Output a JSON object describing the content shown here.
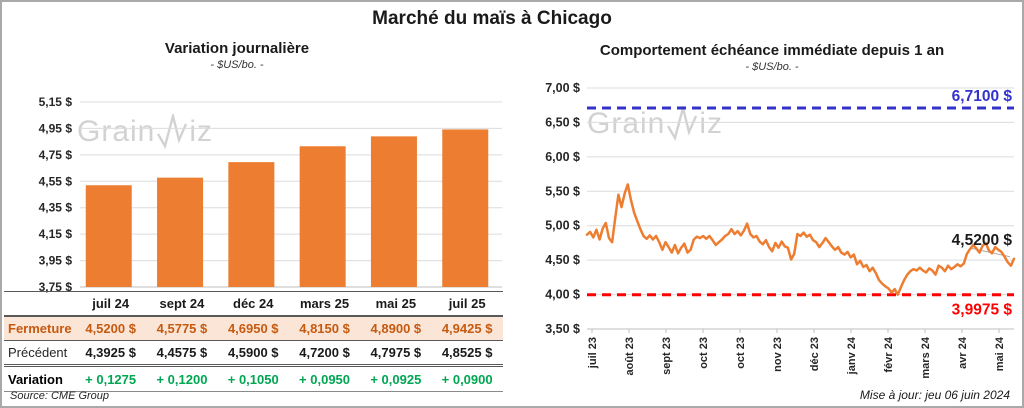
{
  "main": {
    "title": "Marché du maïs à Chicago"
  },
  "watermark": {
    "part1": "Grain",
    "part2": "iz"
  },
  "colors": {
    "orange": "#ED7D31",
    "peach_bg": "#FBE5D6",
    "dark_orange_text": "#C55A11",
    "green_text": "#00A651",
    "blue_ref": "#3333CC",
    "red_ref": "#FF0000",
    "gridline": "#DCDCDC",
    "axis": "#BFBFBF",
    "table_border": "#595959",
    "watermark": "#D2D2D2"
  },
  "chart_data": [
    {
      "type": "bar",
      "title": "Variation journalière",
      "subtitle": "- $US/bo. -",
      "categories": [
        "juil 24",
        "sept 24",
        "déc 24",
        "mars 25",
        "mai 25",
        "juil 25"
      ],
      "values": [
        4.52,
        4.5775,
        4.695,
        4.815,
        4.89,
        4.9425
      ],
      "ylim": [
        3.75,
        5.15
      ],
      "ytick_values": [
        5.15,
        4.95,
        4.75,
        4.55,
        4.35,
        4.15,
        3.95,
        3.75
      ],
      "ytick_labels": [
        "5,15 $",
        "4,95 $",
        "4,75 $",
        "4,55 $",
        "4,35 $",
        "4,15 $",
        "3,95 $",
        "3,75 $"
      ],
      "grid": true,
      "legend": "none"
    },
    {
      "type": "line",
      "title": "Comportement échéance immédiate depuis 1 an",
      "subtitle": "- $US/bo. -",
      "x_labels": [
        "juil 23",
        "août 23",
        "sept 23",
        "oct 23",
        "oct 23",
        "nov 23",
        "déc 23",
        "janv 24",
        "févr 24",
        "mars 24",
        "avr 24",
        "mai 24"
      ],
      "ylim": [
        3.5,
        7.0
      ],
      "ytick_values": [
        7.0,
        6.5,
        6.0,
        5.5,
        5.0,
        4.5,
        4.0,
        3.5
      ],
      "ytick_labels": [
        "7,00 $",
        "6,50 $",
        "6,00 $",
        "5,50 $",
        "5,00 $",
        "4,50 $",
        "4,00 $",
        "3,50 $"
      ],
      "grid": true,
      "legend": "none",
      "values": [
        4.87,
        4.91,
        4.83,
        4.94,
        4.8,
        4.96,
        5.04,
        4.82,
        4.76,
        5.12,
        5.45,
        5.27,
        5.47,
        5.6,
        5.37,
        5.19,
        5.07,
        4.95,
        4.85,
        4.81,
        4.86,
        4.8,
        4.85,
        4.76,
        4.65,
        4.76,
        4.69,
        4.61,
        4.72,
        4.6,
        4.68,
        4.74,
        4.61,
        4.65,
        4.8,
        4.84,
        4.82,
        4.85,
        4.81,
        4.85,
        4.79,
        4.72,
        4.76,
        4.8,
        4.85,
        4.88,
        4.95,
        4.88,
        4.92,
        4.86,
        4.93,
        5.03,
        4.88,
        4.83,
        4.85,
        4.77,
        4.73,
        4.79,
        4.69,
        4.63,
        4.75,
        4.68,
        4.77,
        4.7,
        4.68,
        4.51,
        4.59,
        4.88,
        4.85,
        4.9,
        4.84,
        4.87,
        4.79,
        4.76,
        4.69,
        4.75,
        4.82,
        4.76,
        4.7,
        4.65,
        4.69,
        4.61,
        4.58,
        4.62,
        4.54,
        4.58,
        4.44,
        4.49,
        4.4,
        4.43,
        4.34,
        4.39,
        4.31,
        4.21,
        4.16,
        4.12,
        4.09,
        4.03,
        4.08,
        3.9975,
        4.11,
        4.21,
        4.29,
        4.34,
        4.37,
        4.35,
        4.39,
        4.35,
        4.32,
        4.38,
        4.35,
        4.29,
        4.42,
        4.39,
        4.34,
        4.42,
        4.37,
        4.4,
        4.44,
        4.41,
        4.45,
        4.59,
        4.66,
        4.72,
        4.67,
        4.61,
        4.71,
        4.75,
        4.64,
        4.6,
        4.69,
        4.65,
        4.62,
        4.55,
        4.47,
        4.42,
        4.52
      ],
      "ref_lines": [
        {
          "value": 6.71,
          "label": "6,7100 $",
          "color": "#3333CC",
          "label_side": "above"
        },
        {
          "value": 3.9975,
          "label": "3,9975 $",
          "color": "#FF0000",
          "label_side": "below"
        }
      ],
      "last_point_label": "4,5200 $"
    }
  ],
  "table": {
    "columns": [
      "juil 24",
      "sept 24",
      "déc 24",
      "mars 25",
      "mai 25",
      "juil 25"
    ],
    "rows": [
      {
        "key": "fermeture",
        "label": "Fermeture",
        "values": [
          "4,5200 $",
          "4,5775 $",
          "4,6950 $",
          "4,8150 $",
          "4,8900 $",
          "4,9425 $"
        ]
      },
      {
        "key": "precedent",
        "label": "Précédent",
        "values": [
          "4,3925 $",
          "4,4575 $",
          "4,5900 $",
          "4,7200 $",
          "4,7975 $",
          "4,8525 $"
        ]
      },
      {
        "key": "variation",
        "label": "Variation",
        "values": [
          "+ 0,1275",
          "+ 0,1200",
          "+ 0,1050",
          "+ 0,0950",
          "+ 0,0925",
          "+ 0,0900"
        ]
      }
    ],
    "source": "Source: CME Group"
  },
  "footer": {
    "updated": "Mise à jour: jeu 06 juin 2024"
  }
}
